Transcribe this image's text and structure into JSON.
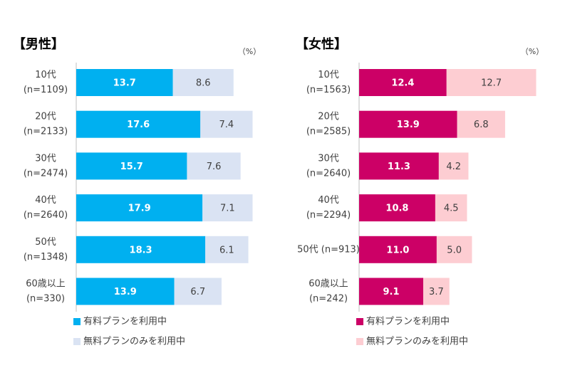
{
  "chart_data": [
    {
      "type": "stacked-bar-horizontal",
      "title": "【男性】",
      "unit": "（%）",
      "categories": [
        [
          "10代",
          "(n=1109)"
        ],
        [
          "20代",
          "(n=2133)"
        ],
        [
          "30代",
          "(n=2474)"
        ],
        [
          "40代",
          "(n=2640)"
        ],
        [
          "50代",
          "(n=1348)"
        ],
        [
          "60歳以上",
          "(n=330)"
        ]
      ],
      "xlim": [
        0,
        30
      ],
      "series": [
        {
          "name": "有料プランを利用中",
          "color": "#00b0f0",
          "values": [
            13.7,
            17.6,
            15.7,
            17.9,
            18.3,
            13.9
          ],
          "value_labels": [
            "13.7",
            "17.6",
            "15.7",
            "17.9",
            "18.3",
            "13.9"
          ]
        },
        {
          "name": "無料プランのみを利用中",
          "color": "#dae3f3",
          "values": [
            8.6,
            7.4,
            7.6,
            7.1,
            6.1,
            6.7
          ],
          "value_labels": [
            "8.6",
            "7.4",
            "7.6",
            "7.1",
            "6.1",
            "6.7"
          ]
        }
      ]
    },
    {
      "type": "stacked-bar-horizontal",
      "title": "【女性】",
      "unit": "（%）",
      "categories": [
        [
          "10代",
          "(n=1563)"
        ],
        [
          "20代",
          "(n=2585)"
        ],
        [
          "30代",
          "(n=2640)"
        ],
        [
          "40代",
          "(n=2294)"
        ],
        [
          "50代 (n=913)"
        ],
        [
          "60歳以上",
          "(n=242)"
        ]
      ],
      "xlim": [
        0,
        30
      ],
      "series": [
        {
          "name": "有料プランを利用中",
          "color": "#cc0066",
          "values": [
            12.4,
            13.9,
            11.3,
            10.8,
            11.0,
            9.1
          ],
          "value_labels": [
            "12.4",
            "13.9",
            "11.3",
            "10.8",
            "11.0",
            "9.1"
          ]
        },
        {
          "name": "無料プランのみを利用中",
          "color": "#fdcdd2",
          "values": [
            12.7,
            6.8,
            4.2,
            4.5,
            5.0,
            3.7
          ],
          "value_labels": [
            "12.7",
            "6.8",
            "4.2",
            "4.5",
            "5.0",
            "3.7"
          ]
        }
      ]
    }
  ]
}
